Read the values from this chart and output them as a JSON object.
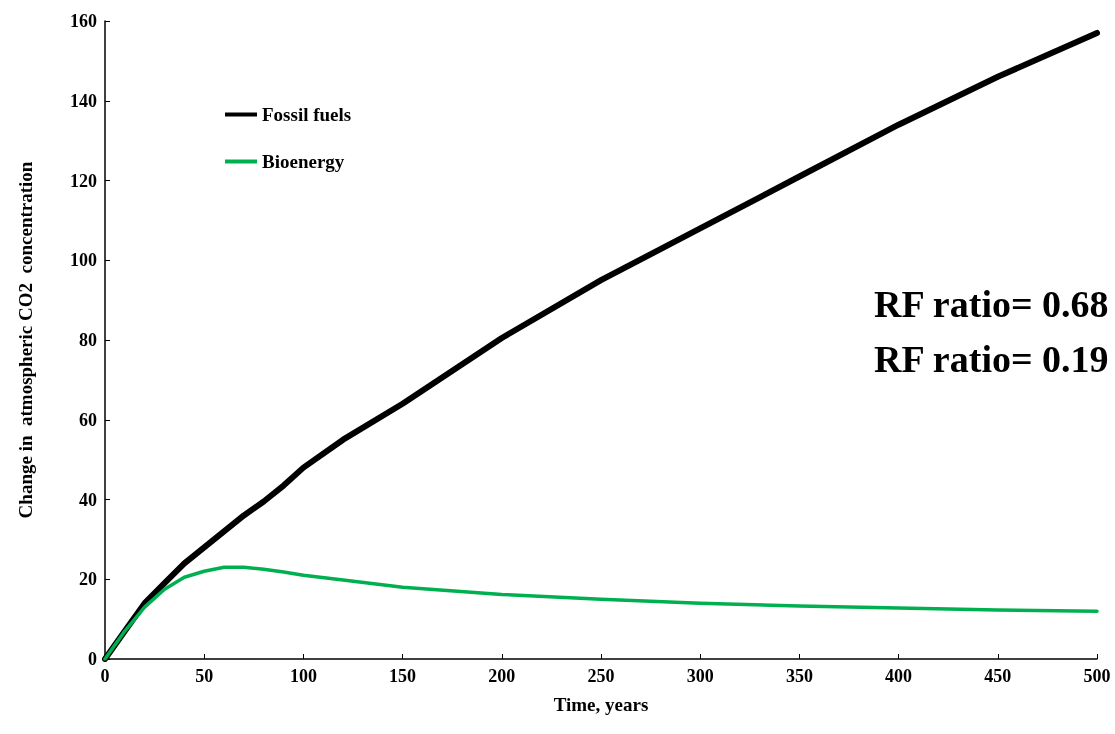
{
  "chart_data": {
    "type": "line",
    "xlabel": "Time, years",
    "ylabel": "Change in  atmospheric CO2  concentration",
    "xlim": [
      0,
      500
    ],
    "xticks": [
      0,
      50,
      100,
      150,
      200,
      250,
      300,
      350,
      400,
      450,
      500
    ],
    "ylim": [
      0,
      160
    ],
    "yticks": [
      0,
      20,
      40,
      60,
      80,
      100,
      120,
      140,
      160
    ],
    "grid": false,
    "legend": "top left",
    "marker": "none",
    "line_style": "solid",
    "annotations": [
      "RF ratio= 0.68",
      "RF ratio= 0.19"
    ],
    "x": [
      0,
      10,
      20,
      30,
      40,
      50,
      60,
      70,
      80,
      90,
      100,
      120,
      150,
      200,
      250,
      300,
      350,
      400,
      450,
      500
    ],
    "series": [
      {
        "name": "Fossil fuels",
        "color": "#000000",
        "values": [
          0,
          7,
          14,
          19,
          24,
          28,
          32,
          36,
          39.5,
          43.5,
          48,
          55,
          64,
          80.5,
          95,
          108,
          121,
          134,
          146,
          157
        ]
      },
      {
        "name": "Bioenergy",
        "color": "#00b050",
        "values": [
          0,
          7,
          13,
          17.5,
          20.5,
          22,
          23,
          23,
          22.5,
          21.8,
          21,
          19.8,
          18,
          16.2,
          15,
          14,
          13.3,
          12.8,
          12.3,
          12
        ]
      }
    ]
  }
}
